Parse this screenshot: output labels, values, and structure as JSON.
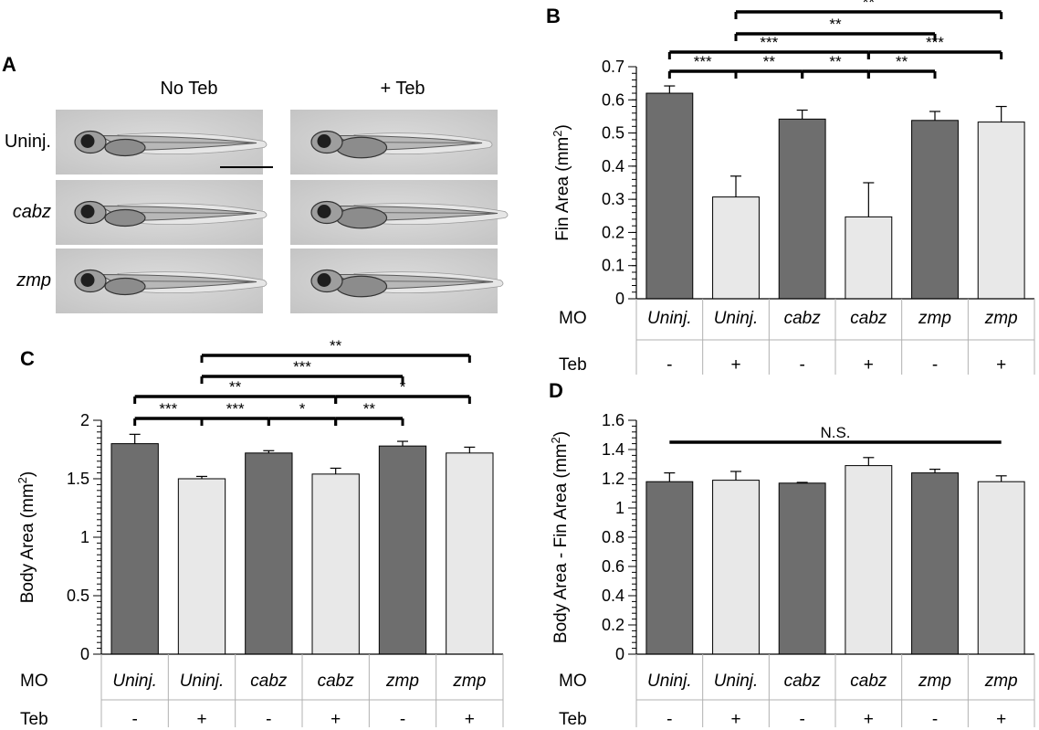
{
  "panel_a": {
    "label": "A",
    "columns": [
      "No Teb",
      "+ Teb"
    ],
    "rows": [
      {
        "label": "Uninj.",
        "italic": false
      },
      {
        "label": "cabz",
        "italic": true
      },
      {
        "label": "zmp",
        "italic": true
      }
    ]
  },
  "colors": {
    "dark": "#6e6e6e",
    "light": "#e8e8e8",
    "outline": "#000000"
  },
  "chart_data": [
    {
      "type": "bar",
      "panel": "B",
      "title": "",
      "ylabel": "Fin  Area (mm²)",
      "ylim": [
        0,
        0.7
      ],
      "yticks": [
        "0",
        "0.1",
        "0.2",
        "0.3",
        "0.4",
        "0.5",
        "0.6",
        "0.7"
      ],
      "categories": [
        "Uninj.",
        "Uninj.",
        "cabz",
        "cabz",
        "zmp",
        "zmp"
      ],
      "mo_label": "MO",
      "teb_label": "Teb",
      "teb": [
        "-",
        "+",
        "-",
        "+",
        "-",
        "+"
      ],
      "values": [
        0.62,
        0.307,
        0.542,
        0.247,
        0.538,
        0.533
      ],
      "errors": [
        0.022,
        0.063,
        0.027,
        0.103,
        0.027,
        0.047
      ],
      "significance": [
        {
          "from": 0,
          "to": 1,
          "label": "***"
        },
        {
          "from": 1,
          "to": 2,
          "label": "**"
        },
        {
          "from": 2,
          "to": 3,
          "label": "**"
        },
        {
          "from": 3,
          "to": 4,
          "label": "**"
        },
        {
          "from": 0,
          "to": 3,
          "label": "***"
        },
        {
          "from": 3,
          "to": 5,
          "label": "***"
        },
        {
          "from": 1,
          "to": 4,
          "label": "**"
        },
        {
          "from": 1,
          "to": 5,
          "label": "**"
        }
      ]
    },
    {
      "type": "bar",
      "panel": "C",
      "title": "",
      "ylabel": "Body Area (mm²)",
      "ylim": [
        0,
        2
      ],
      "yticks": [
        "0",
        "0.5",
        "1",
        "1.5",
        "2"
      ],
      "categories": [
        "Uninj.",
        "Uninj.",
        "cabz",
        "cabz",
        "zmp",
        "zmp"
      ],
      "mo_label": "MO",
      "teb_label": "Teb",
      "teb": [
        "-",
        "+",
        "-",
        "+",
        "-",
        "+"
      ],
      "values": [
        1.8,
        1.5,
        1.72,
        1.54,
        1.78,
        1.72
      ],
      "errors": [
        0.08,
        0.02,
        0.02,
        0.05,
        0.04,
        0.05
      ],
      "significance": [
        {
          "from": 0,
          "to": 1,
          "label": "***"
        },
        {
          "from": 1,
          "to": 2,
          "label": "***"
        },
        {
          "from": 2,
          "to": 3,
          "label": "*"
        },
        {
          "from": 3,
          "to": 4,
          "label": "**"
        },
        {
          "from": 0,
          "to": 3,
          "label": "**"
        },
        {
          "from": 3,
          "to": 5,
          "label": "*"
        },
        {
          "from": 1,
          "to": 4,
          "label": "***"
        },
        {
          "from": 1,
          "to": 5,
          "label": "**"
        }
      ]
    },
    {
      "type": "bar",
      "panel": "D",
      "title": "",
      "ylabel": "Body Area - Fin Area (mm²)",
      "ylim": [
        0,
        1.6
      ],
      "yticks": [
        "0",
        "0.2",
        "0.4",
        "0.6",
        "0.8",
        "1",
        "1.2",
        "1.4",
        "1.6"
      ],
      "categories": [
        "Uninj.",
        "Uninj.",
        "cabz",
        "cabz",
        "zmp",
        "zmp"
      ],
      "mo_label": "MO",
      "teb_label": "Teb",
      "teb": [
        "-",
        "+",
        "-",
        "+",
        "-",
        "+"
      ],
      "values": [
        1.18,
        1.19,
        1.17,
        1.29,
        1.24,
        1.18
      ],
      "errors": [
        0.06,
        0.06,
        0.005,
        0.055,
        0.025,
        0.04
      ],
      "significance": [
        {
          "from": 0,
          "to": 5,
          "label": "N.S."
        }
      ]
    }
  ]
}
